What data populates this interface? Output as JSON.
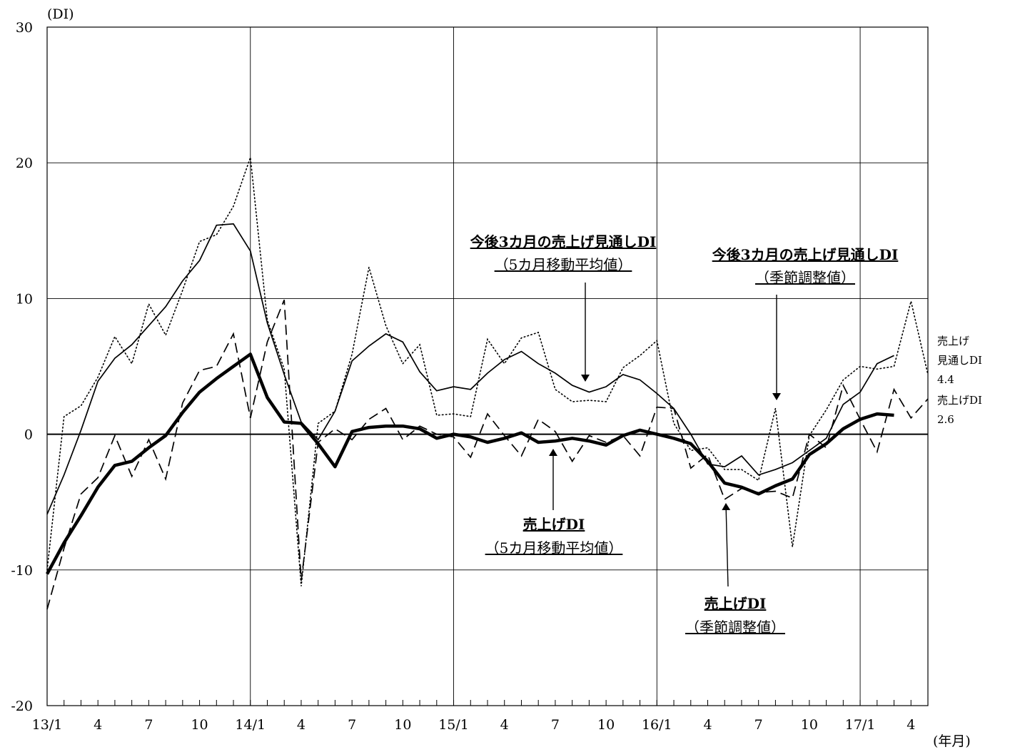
{
  "chart_data": {
    "type": "line",
    "title": "",
    "ylabel": "(DI)",
    "xlabel": "(年月)",
    "ylim": [
      -20,
      30
    ],
    "yticks": [
      30,
      20,
      10,
      0,
      -10,
      -20
    ],
    "x_tick_labels": [
      "13/1",
      "4",
      "7",
      "10",
      "14/1",
      "4",
      "7",
      "10",
      "15/1",
      "4",
      "7",
      "10",
      "16/1",
      "4",
      "7",
      "10",
      "17/1",
      "4"
    ],
    "x_start": "13/1",
    "grid": true,
    "series": [
      {
        "name": "今後3カ月の売上げ見通しDI（季節調整値）",
        "style": "dotted",
        "values": [
          -10,
          1.3,
          2.1,
          4.2,
          7.2,
          5.2,
          9.6,
          7.3,
          10.6,
          14.2,
          14.7,
          16.8,
          20.4,
          8.4,
          4.8,
          -11.2,
          0.8,
          1.7,
          5.9,
          12.3,
          8.0,
          5.2,
          6.6,
          1.4,
          1.5,
          1.3,
          7.0,
          5.2,
          7.1,
          7.5,
          3.3,
          2.4,
          2.5,
          2.4,
          4.9,
          5.8,
          6.9,
          0.8,
          -1.2,
          -1.0,
          -2.6,
          -2.6,
          -3.4,
          1.9,
          -8.3,
          -0.1,
          1.8,
          4.0,
          5.0,
          4.8,
          5.0,
          9.8,
          4.4
        ]
      },
      {
        "name": "今後3カ月の売上げ見通しDI（5カ月移動平均値）",
        "style": "thin",
        "values": [
          -5.9,
          -3.0,
          0.3,
          3.9,
          5.6,
          6.6,
          8.0,
          9.4,
          11.3,
          12.8,
          15.4,
          15.5,
          13.5,
          8.2,
          4.4,
          0.9,
          -0.4,
          1.7,
          5.4,
          6.5,
          7.4,
          6.8,
          4.6,
          3.2,
          3.5,
          3.3,
          4.5,
          5.5,
          6.1,
          5.2,
          4.5,
          3.6,
          3.1,
          3.5,
          4.4,
          4.0,
          3.0,
          1.9,
          0.0,
          -2.2,
          -2.4,
          -1.6,
          -3.0,
          -2.6,
          -2.1,
          -1.2,
          -0.3,
          2.2,
          3.1,
          5.2,
          5.8
        ]
      },
      {
        "name": "売上げDI（季節調整値）",
        "style": "dashed",
        "values": [
          -12.9,
          -8.4,
          -4.4,
          -3.2,
          -0.1,
          -3.1,
          -0.4,
          -3.3,
          2.3,
          4.7,
          5.0,
          7.4,
          1.2,
          6.8,
          9.9,
          -10.8,
          -0.6,
          0.4,
          -0.4,
          1.1,
          1.9,
          -0.4,
          0.6,
          0.0,
          -0.2,
          -1.7,
          1.5,
          -0.1,
          -1.6,
          1.1,
          0.2,
          -2.0,
          -0.1,
          -0.6,
          -0.1,
          -1.6,
          2.0,
          1.9,
          -2.5,
          -1.5,
          -4.8,
          -4.0,
          -4.3,
          -4.2,
          -4.7,
          0.0,
          -1.0,
          3.6,
          1.1,
          -1.3,
          3.3,
          1.2,
          2.6
        ]
      },
      {
        "name": "売上げDI（5カ月移動平均値）",
        "style": "thick",
        "values": [
          -10.3,
          -8.0,
          -6.0,
          -3.9,
          -2.3,
          -2.0,
          -1.0,
          -0.1,
          1.6,
          3.1,
          4.1,
          5.0,
          5.9,
          2.7,
          0.9,
          0.8,
          -0.7,
          -2.4,
          0.2,
          0.5,
          0.6,
          0.6,
          0.4,
          -0.3,
          0.0,
          -0.2,
          -0.6,
          -0.3,
          0.1,
          -0.6,
          -0.5,
          -0.3,
          -0.5,
          -0.8,
          -0.1,
          0.3,
          0.0,
          -0.3,
          -0.7,
          -2.0,
          -3.6,
          -3.9,
          -4.4,
          -3.8,
          -3.3,
          -1.5,
          -0.7,
          0.4,
          1.1,
          1.5,
          1.4
        ]
      }
    ],
    "annotations": [
      {
        "line1": "今後3カ月の売上げ見通しDI",
        "line2": "（5カ月移動平均値）"
      },
      {
        "line1": "今後3カ月の売上げ見通しDI",
        "line2": "（季節調整値）"
      },
      {
        "line1": "売上げDI",
        "line2": "（5カ月移動平均値）"
      },
      {
        "line1": "売上げDI",
        "line2": "（季節調整値）"
      }
    ],
    "end_labels": [
      {
        "lines": [
          "売上げ",
          "見通しDI",
          "4.4"
        ]
      },
      {
        "lines": [
          "売上げDI",
          "2.6"
        ]
      }
    ]
  }
}
